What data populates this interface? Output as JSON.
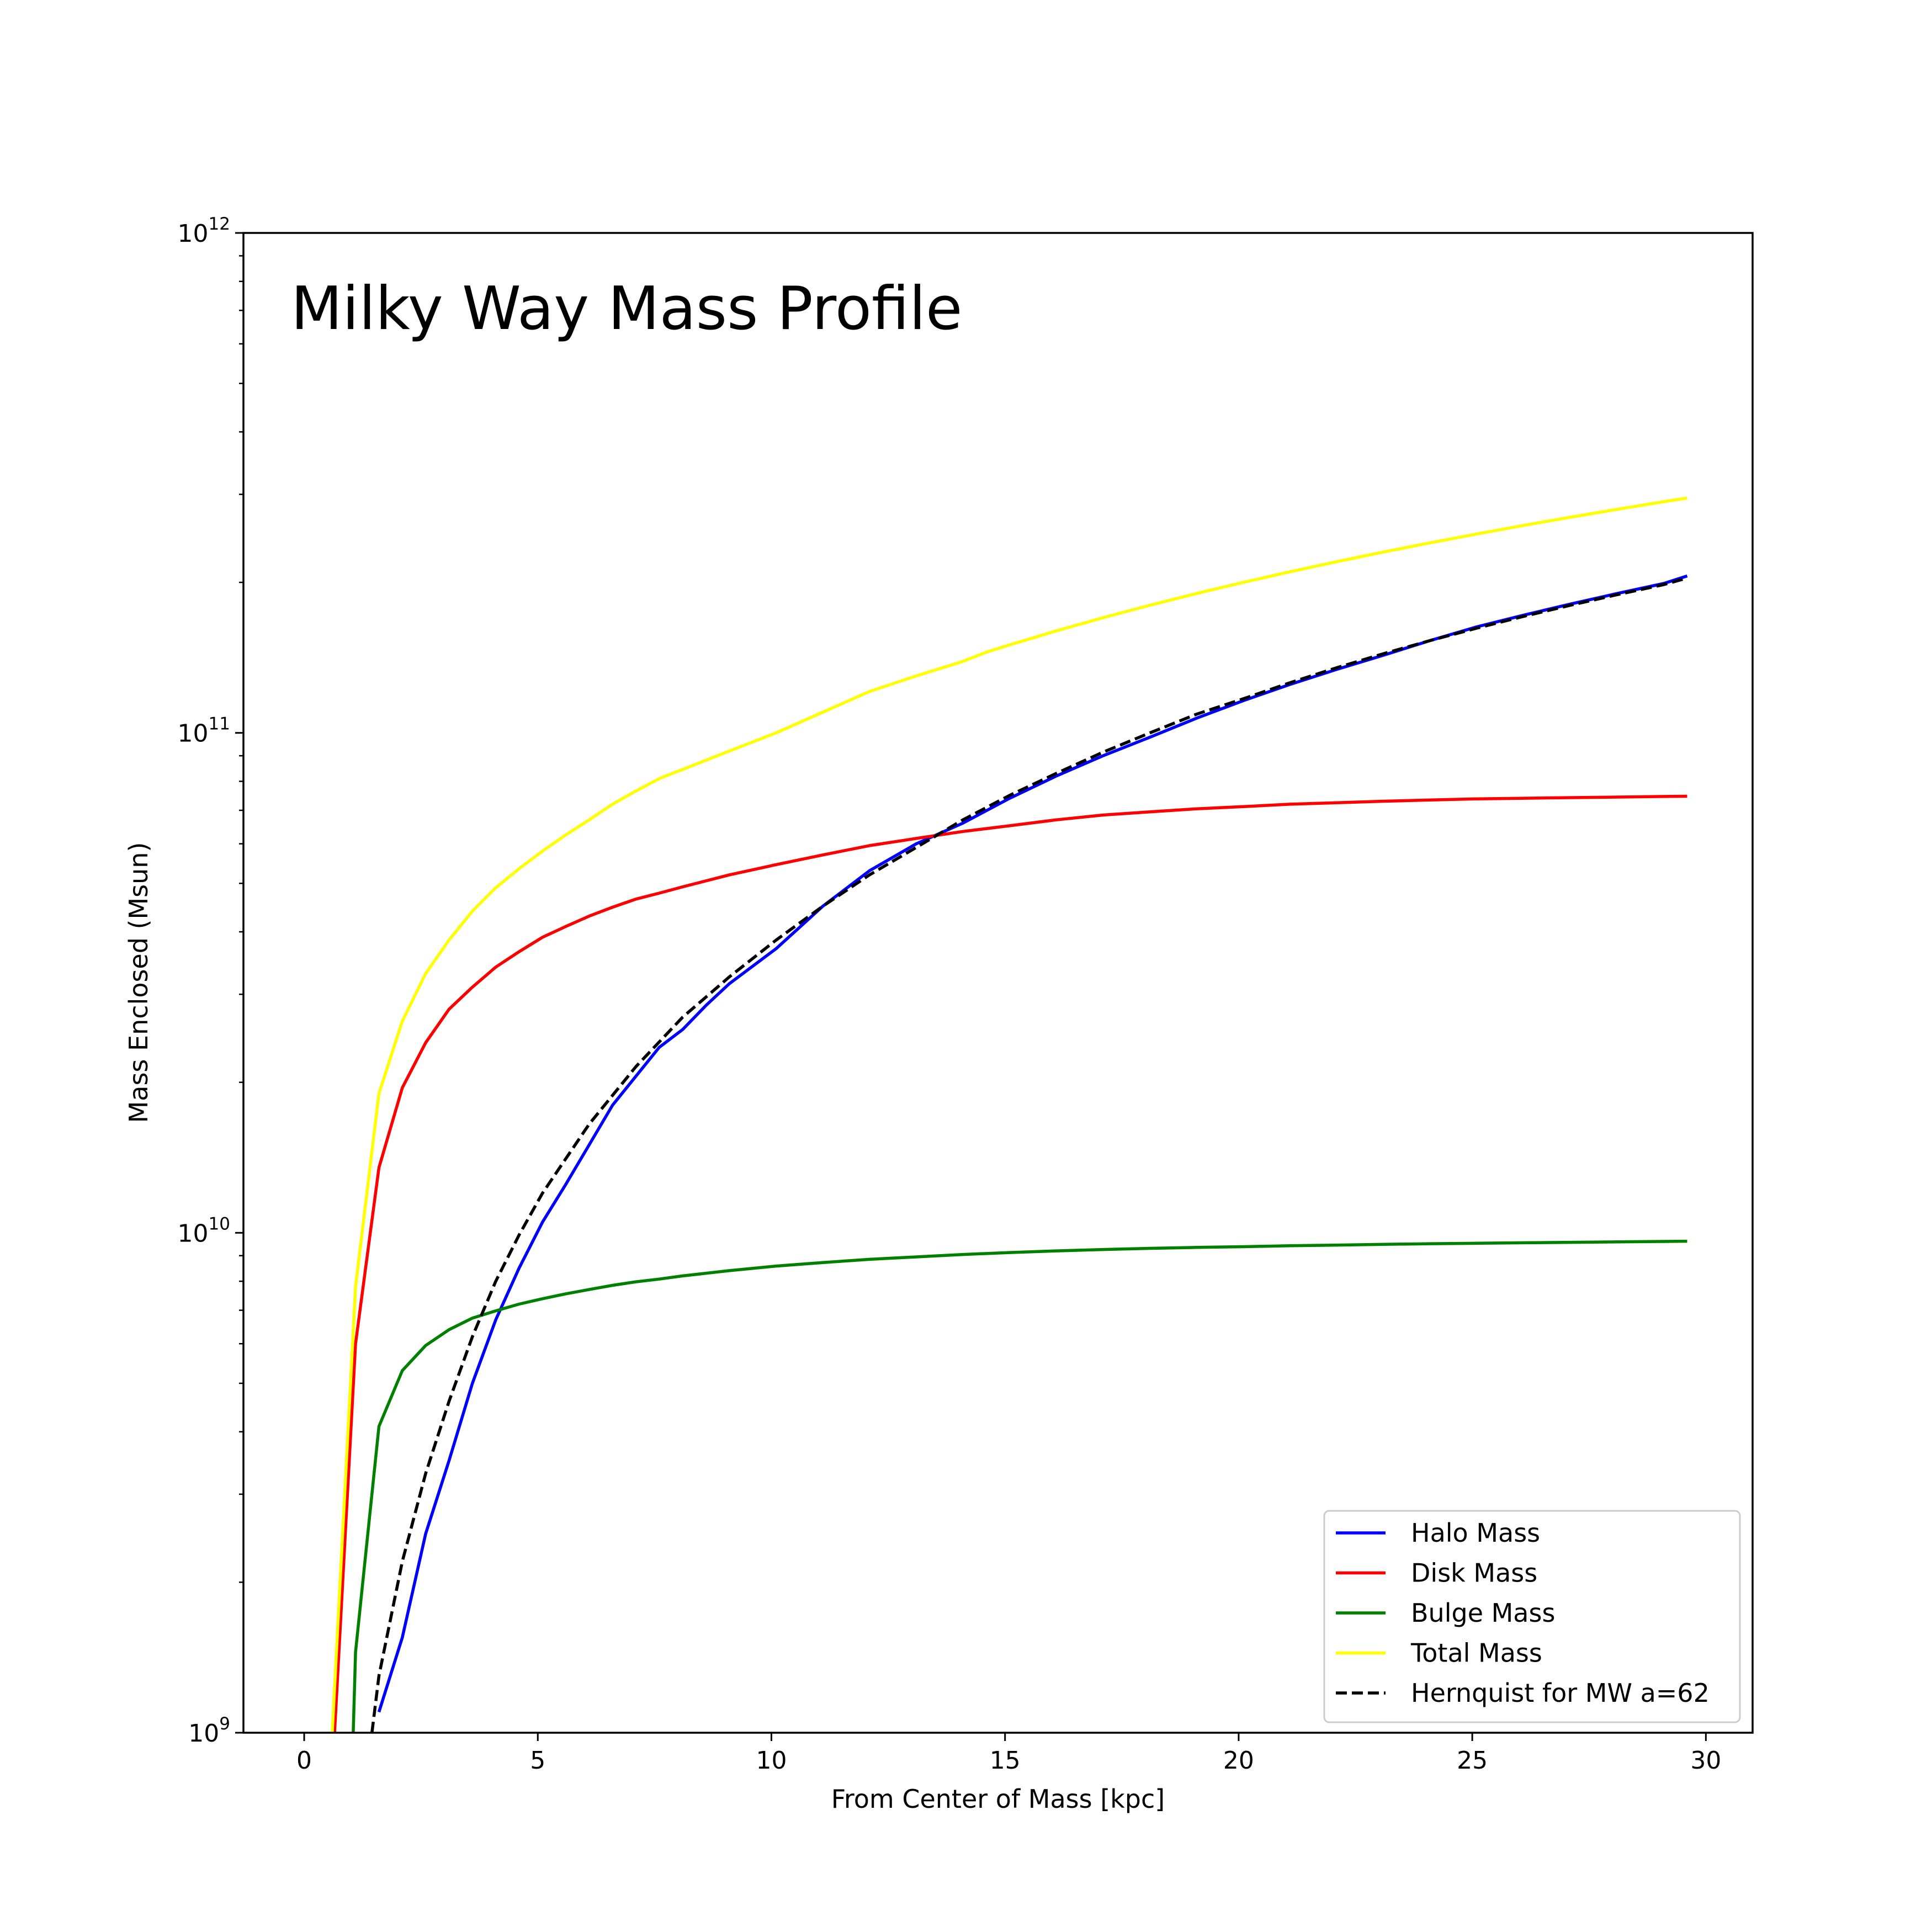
{
  "chart_data": {
    "type": "line",
    "title": "Milky Way Mass Profile",
    "xlabel": "From Center of Mass [kpc]",
    "ylabel": "Mass Enclosed (Msun)",
    "xlim": [
      -1.3,
      31
    ],
    "ylim": [
      1000000000.0,
      1000000000000.0
    ],
    "yscale": "log",
    "grid": false,
    "legend_position": "lower-right",
    "x_ticks": [
      0,
      5,
      10,
      15,
      20,
      25,
      30
    ],
    "x_tick_labels": [
      "0",
      "5",
      "10",
      "15",
      "20",
      "25",
      "30"
    ],
    "y_ticks": [
      {
        "value": 1000000000.0,
        "base": "10",
        "exp": "9"
      },
      {
        "value": 10000000000.0,
        "base": "10",
        "exp": "10"
      },
      {
        "value": 100000000000.0,
        "base": "10",
        "exp": "11"
      },
      {
        "value": 1000000000000.0,
        "base": "10",
        "exp": "12"
      }
    ],
    "series": [
      {
        "name": "Halo Mass",
        "color": "#0000ff",
        "dash": "solid",
        "x": [
          1.6,
          2.1,
          2.6,
          3.1,
          3.6,
          4.1,
          4.6,
          5.1,
          5.6,
          6.1,
          6.6,
          7.6,
          8.1,
          8.6,
          9.1,
          10.1,
          11.1,
          12.1,
          13.1,
          14.1,
          15.1,
          16.1,
          17.1,
          18.1,
          19.1,
          20.1,
          21.1,
          22.1,
          23.1,
          24.1,
          25.1,
          26.1,
          27.1,
          28.1,
          29.1,
          29.6
        ],
        "y": [
          1100000000.0,
          1550000000.0,
          2500000000.0,
          3500000000.0,
          5000000000.0,
          6700000000.0,
          8500000000.0,
          10500000000.0,
          12500000000.0,
          15000000000.0,
          18000000000.0,
          23500000000.0,
          25500000000.0,
          28500000000.0,
          31500000000.0,
          37000000000.0,
          45000000000.0,
          53000000000.0,
          60000000000.0,
          66000000000.0,
          74000000000.0,
          82000000000.0,
          90000000000.0,
          98000000000.0,
          107000000000.0,
          116000000000.0,
          125000000000.0,
          134000000000.0,
          143000000000.0,
          153000000000.0,
          163000000000.0,
          172000000000.0,
          181000000000.0,
          190000000000.0,
          199000000000.0,
          206000000000.0
        ]
      },
      {
        "name": "Disk Mass",
        "color": "#ff0000",
        "dash": "solid",
        "x": [
          0.65,
          1.1,
          1.6,
          2.1,
          2.6,
          3.1,
          3.6,
          4.1,
          4.6,
          5.1,
          5.6,
          6.1,
          6.6,
          7.1,
          7.6,
          8.1,
          9.1,
          10.1,
          11.1,
          12.1,
          13.1,
          14.1,
          15.1,
          16.1,
          17.1,
          18.1,
          19.1,
          20.1,
          21.1,
          22.1,
          23.1,
          24.1,
          25.1,
          26.1,
          27.1,
          28.1,
          29.1,
          29.6
        ],
        "y": [
          1000000000.0,
          6000000000.0,
          13500000000.0,
          19500000000.0,
          24000000000.0,
          28000000000.0,
          31000000000.0,
          34000000000.0,
          36500000000.0,
          39000000000.0,
          41000000000.0,
          43000000000.0,
          44800000000.0,
          46500000000.0,
          47800000000.0,
          49200000000.0,
          52000000000.0,
          54500000000.0,
          57000000000.0,
          59500000000.0,
          61500000000.0,
          63500000000.0,
          65200000000.0,
          67000000000.0,
          68500000000.0,
          69500000000.0,
          70500000000.0,
          71200000000.0,
          72000000000.0,
          72500000000.0,
          73000000000.0,
          73400000000.0,
          73800000000.0,
          74000000000.0,
          74200000000.0,
          74400000000.0,
          74600000000.0,
          74700000000.0
        ]
      },
      {
        "name": "Bulge Mass",
        "color": "#008000",
        "dash": "solid",
        "x": [
          1.05,
          1.1,
          1.6,
          2.1,
          2.6,
          3.1,
          3.6,
          4.1,
          4.6,
          5.1,
          5.6,
          6.1,
          6.6,
          7.1,
          7.6,
          8.1,
          9.1,
          10.1,
          11.1,
          12.1,
          13.1,
          14.1,
          15.1,
          16.1,
          17.1,
          18.1,
          19.1,
          20.1,
          21.1,
          22.1,
          23.1,
          24.1,
          25.1,
          26.1,
          27.1,
          28.1,
          29.1,
          29.6
        ],
        "y": [
          1000000000.0,
          1450000000.0,
          4100000000.0,
          5300000000.0,
          5950000000.0,
          6400000000.0,
          6750000000.0,
          6980000000.0,
          7200000000.0,
          7380000000.0,
          7550000000.0,
          7700000000.0,
          7850000000.0,
          7980000000.0,
          8080000000.0,
          8200000000.0,
          8400000000.0,
          8580000000.0,
          8720000000.0,
          8850000000.0,
          8950000000.0,
          9050000000.0,
          9130000000.0,
          9200000000.0,
          9260000000.0,
          9310000000.0,
          9350000000.0,
          9380000000.0,
          9420000000.0,
          9450000000.0,
          9480000000.0,
          9510000000.0,
          9530000000.0,
          9550000000.0,
          9570000000.0,
          9590000000.0,
          9610000000.0,
          9620000000.0
        ]
      },
      {
        "name": "Total Mass",
        "color": "#ffff00",
        "dash": "solid",
        "x": [
          0.6,
          1.1,
          1.6,
          2.1,
          2.6,
          3.1,
          3.6,
          4.1,
          4.6,
          5.1,
          5.6,
          6.1,
          6.6,
          7.1,
          7.6,
          8.1,
          9.1,
          10.1,
          11.1,
          12.1,
          13.1,
          14.1,
          14.6,
          15.1,
          16.1,
          17.1,
          18.1,
          19.1,
          20.1,
          21.1,
          22.1,
          23.1,
          24.1,
          25.1,
          26.1,
          27.1,
          28.1,
          29.1,
          29.6
        ],
        "y": [
          1000000000.0,
          7800000000.0,
          19000000000.0,
          26500000000.0,
          33000000000.0,
          38500000000.0,
          44000000000.0,
          49000000000.0,
          53500000000.0,
          58000000000.0,
          62500000000.0,
          67000000000.0,
          72000000000.0,
          76500000000.0,
          81000000000.0,
          84500000000.0,
          92000000000.0,
          100000000000.0,
          110000000000.0,
          121000000000.0,
          130000000000.0,
          139000000000.0,
          145000000000.0,
          150000000000.0,
          160000000000.0,
          170000000000.0,
          180000000000.0,
          190000000000.0,
          200000000000.0,
          210000000000.0,
          220000000000.0,
          230000000000.0,
          240000000000.0,
          250000000000.0,
          260000000000.0,
          270000000000.0,
          280000000000.0,
          290000000000.0,
          295000000000.0
        ]
      },
      {
        "name": "Hernquist for MW a=62",
        "color": "#000000",
        "dash": "dashed",
        "x": [
          1.45,
          1.6,
          2.1,
          2.6,
          3.1,
          3.6,
          4.1,
          4.6,
          5.1,
          6.1,
          7.1,
          8.1,
          9.1,
          10.1,
          11.1,
          12.1,
          13.1,
          14.1,
          15.1,
          16.1,
          17.1,
          18.1,
          19.1,
          20.1,
          21.1,
          22.1,
          23.1,
          24.1,
          25.1,
          26.1,
          27.1,
          28.1,
          29.1,
          29.6
        ],
        "y": [
          1000000000.0,
          1300000000.0,
          2200000000.0,
          3300000000.0,
          4600000000.0,
          6200000000.0,
          8000000000.0,
          9900000000.0,
          12000000000.0,
          16500000000.0,
          21500000000.0,
          27000000000.0,
          32500000000.0,
          38500000000.0,
          45000000000.0,
          52000000000.0,
          59000000000.0,
          67000000000.0,
          75000000000.0,
          83000000000.0,
          91500000000.0,
          100000000000.0,
          109000000000.0,
          117000000000.0,
          126000000000.0,
          135000000000.0,
          144000000000.0,
          153000000000.0,
          162000000000.0,
          171000000000.0,
          180000000000.0,
          189000000000.0,
          198000000000.0,
          204000000000.0
        ]
      }
    ]
  }
}
